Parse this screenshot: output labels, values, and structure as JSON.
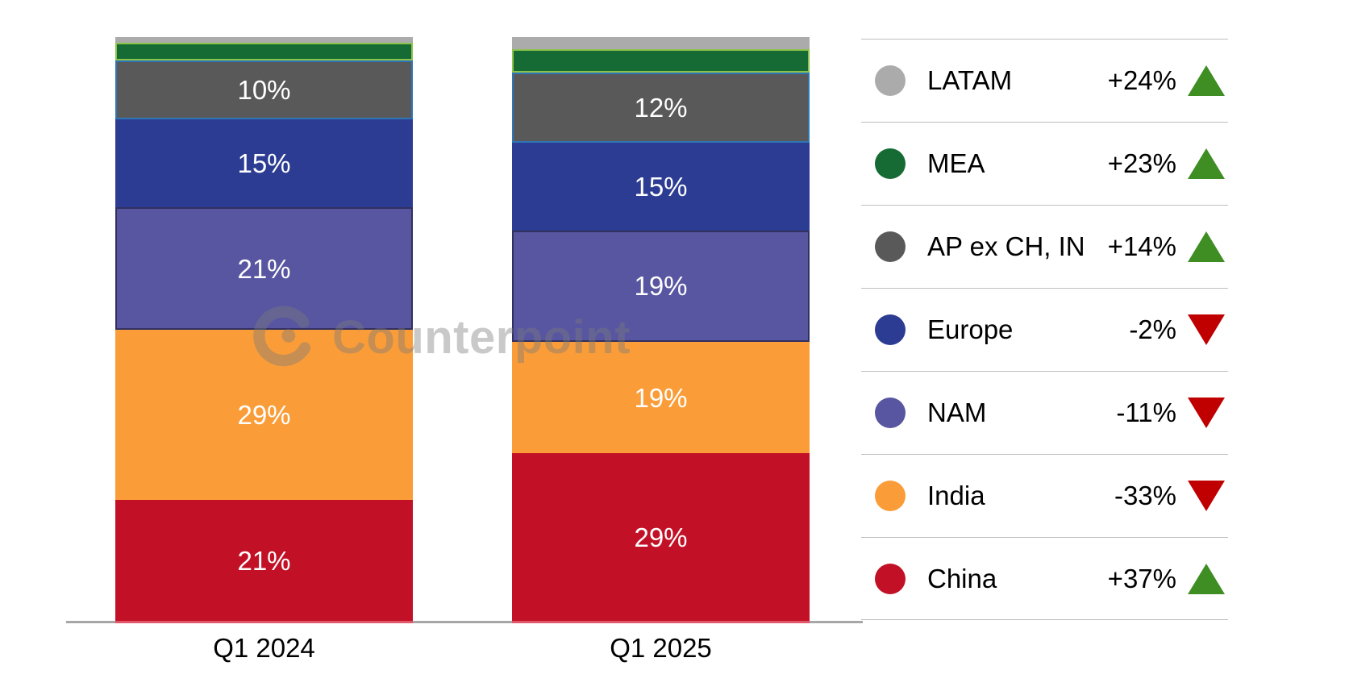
{
  "watermark": {
    "text": "Counterpoint",
    "logo": "counterpoint-logo"
  },
  "chart_data": {
    "type": "bar",
    "variant": "100%-stacked-column",
    "categories": [
      "Q1 2024",
      "Q1 2025"
    ],
    "value_suffix": "%",
    "label_min_value": 10,
    "ylim": [
      0,
      100
    ],
    "grid": false,
    "legend_position": "right",
    "axis_baseline_color": "#A6A6A6",
    "legend_divider_color": "#BFBFBF",
    "trend_colors": {
      "up": "#3E8E23",
      "down": "#C00000"
    },
    "series_top_to_bottom": [
      {
        "name": "LATAM",
        "color": "#ABABAB",
        "values": [
          1,
          2
        ],
        "change": "+24%",
        "trend": "up"
      },
      {
        "name": "MEA",
        "color": "#156B33",
        "border": "#8CC34B",
        "values": [
          3,
          4
        ],
        "change": "+23%",
        "trend": "up"
      },
      {
        "name": "AP ex CH, IN",
        "color": "#595959",
        "border": "#2E75B6",
        "values": [
          10,
          12
        ],
        "change": "+14%",
        "trend": "up"
      },
      {
        "name": "Europe",
        "color": "#2C3C92",
        "values": [
          15,
          15
        ],
        "change": "-2%",
        "trend": "down"
      },
      {
        "name": "NAM",
        "color": "#5956A1",
        "border": "#32305F",
        "values": [
          21,
          19
        ],
        "change": "-11%",
        "trend": "down"
      },
      {
        "name": "India",
        "color": "#FA9D38",
        "values": [
          29,
          19
        ],
        "change": "-33%",
        "trend": "down"
      },
      {
        "name": "China",
        "color": "#C21126",
        "border_bottom": "#E0566B",
        "values": [
          21,
          29
        ],
        "change": "+37%",
        "trend": "up"
      }
    ]
  }
}
